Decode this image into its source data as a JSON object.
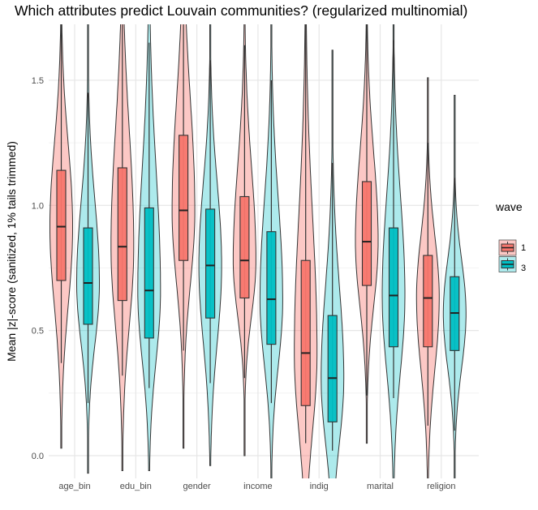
{
  "chart_data": {
    "type": "violin",
    "title": "Which attributes predict Louvain communities? (regularized multinomial)",
    "xlabel": "",
    "ylabel": "Mean |z|-score (sanitized, 1% tails trimmed)",
    "ylim": [
      -0.09,
      1.72
    ],
    "yticks": [
      "0.0",
      "0.5",
      "1.0",
      "1.5"
    ],
    "grid": true,
    "legend": {
      "title": "wave",
      "position": "right",
      "entries": [
        "1",
        "3"
      ]
    },
    "colors": {
      "1": "#F8766D",
      "3": "#00BFC4"
    },
    "categories": [
      "age_bin",
      "edu_bin",
      "gender",
      "income",
      "indig",
      "marital",
      "religion"
    ],
    "series": [
      {
        "name": "1",
        "boxes": [
          {
            "min": 0.03,
            "lower": 0.37,
            "q1": 0.7,
            "median": 0.915,
            "q3": 1.14,
            "upper": 1.8,
            "max": 1.8
          },
          {
            "min": -0.06,
            "lower": 0.32,
            "q1": 0.62,
            "median": 0.835,
            "q3": 1.15,
            "upper": 1.8,
            "max": 1.8
          },
          {
            "min": 0.03,
            "lower": 0.42,
            "q1": 0.78,
            "median": 0.98,
            "q3": 1.28,
            "upper": 1.8,
            "max": 1.8
          },
          {
            "min": 0.0,
            "lower": 0.31,
            "q1": 0.63,
            "median": 0.78,
            "q3": 1.035,
            "upper": 1.64,
            "max": 1.8
          },
          {
            "min": -0.1,
            "lower": 0.05,
            "q1": 0.2,
            "median": 0.41,
            "q3": 0.78,
            "upper": 1.8,
            "max": 1.8
          },
          {
            "min": 0.05,
            "lower": 0.24,
            "q1": 0.68,
            "median": 0.855,
            "q3": 1.095,
            "upper": 1.8,
            "max": 1.8
          },
          {
            "min": -0.1,
            "lower": 0.12,
            "q1": 0.435,
            "median": 0.63,
            "q3": 0.8,
            "upper": 1.25,
            "max": 1.51
          }
        ]
      },
      {
        "name": "3",
        "boxes": [
          {
            "min": -0.07,
            "lower": 0.21,
            "q1": 0.525,
            "median": 0.69,
            "q3": 0.91,
            "upper": 1.45,
            "max": 1.8
          },
          {
            "min": -0.06,
            "lower": 0.27,
            "q1": 0.47,
            "median": 0.66,
            "q3": 0.99,
            "upper": 1.65,
            "max": 1.8
          },
          {
            "min": -0.04,
            "lower": 0.29,
            "q1": 0.55,
            "median": 0.76,
            "q3": 0.985,
            "upper": 1.58,
            "max": 1.8
          },
          {
            "min": -0.1,
            "lower": 0.21,
            "q1": 0.445,
            "median": 0.625,
            "q3": 0.895,
            "upper": 1.5,
            "max": 1.8
          },
          {
            "min": -0.1,
            "lower": 0.02,
            "q1": 0.135,
            "median": 0.31,
            "q3": 0.56,
            "upper": 1.17,
            "max": 1.62
          },
          {
            "min": -0.1,
            "lower": 0.23,
            "q1": 0.435,
            "median": 0.64,
            "q3": 0.91,
            "upper": 1.66,
            "max": 1.8
          },
          {
            "min": -0.1,
            "lower": 0.1,
            "q1": 0.42,
            "median": 0.57,
            "q3": 0.715,
            "upper": 1.11,
            "max": 1.44
          }
        ]
      }
    ]
  }
}
